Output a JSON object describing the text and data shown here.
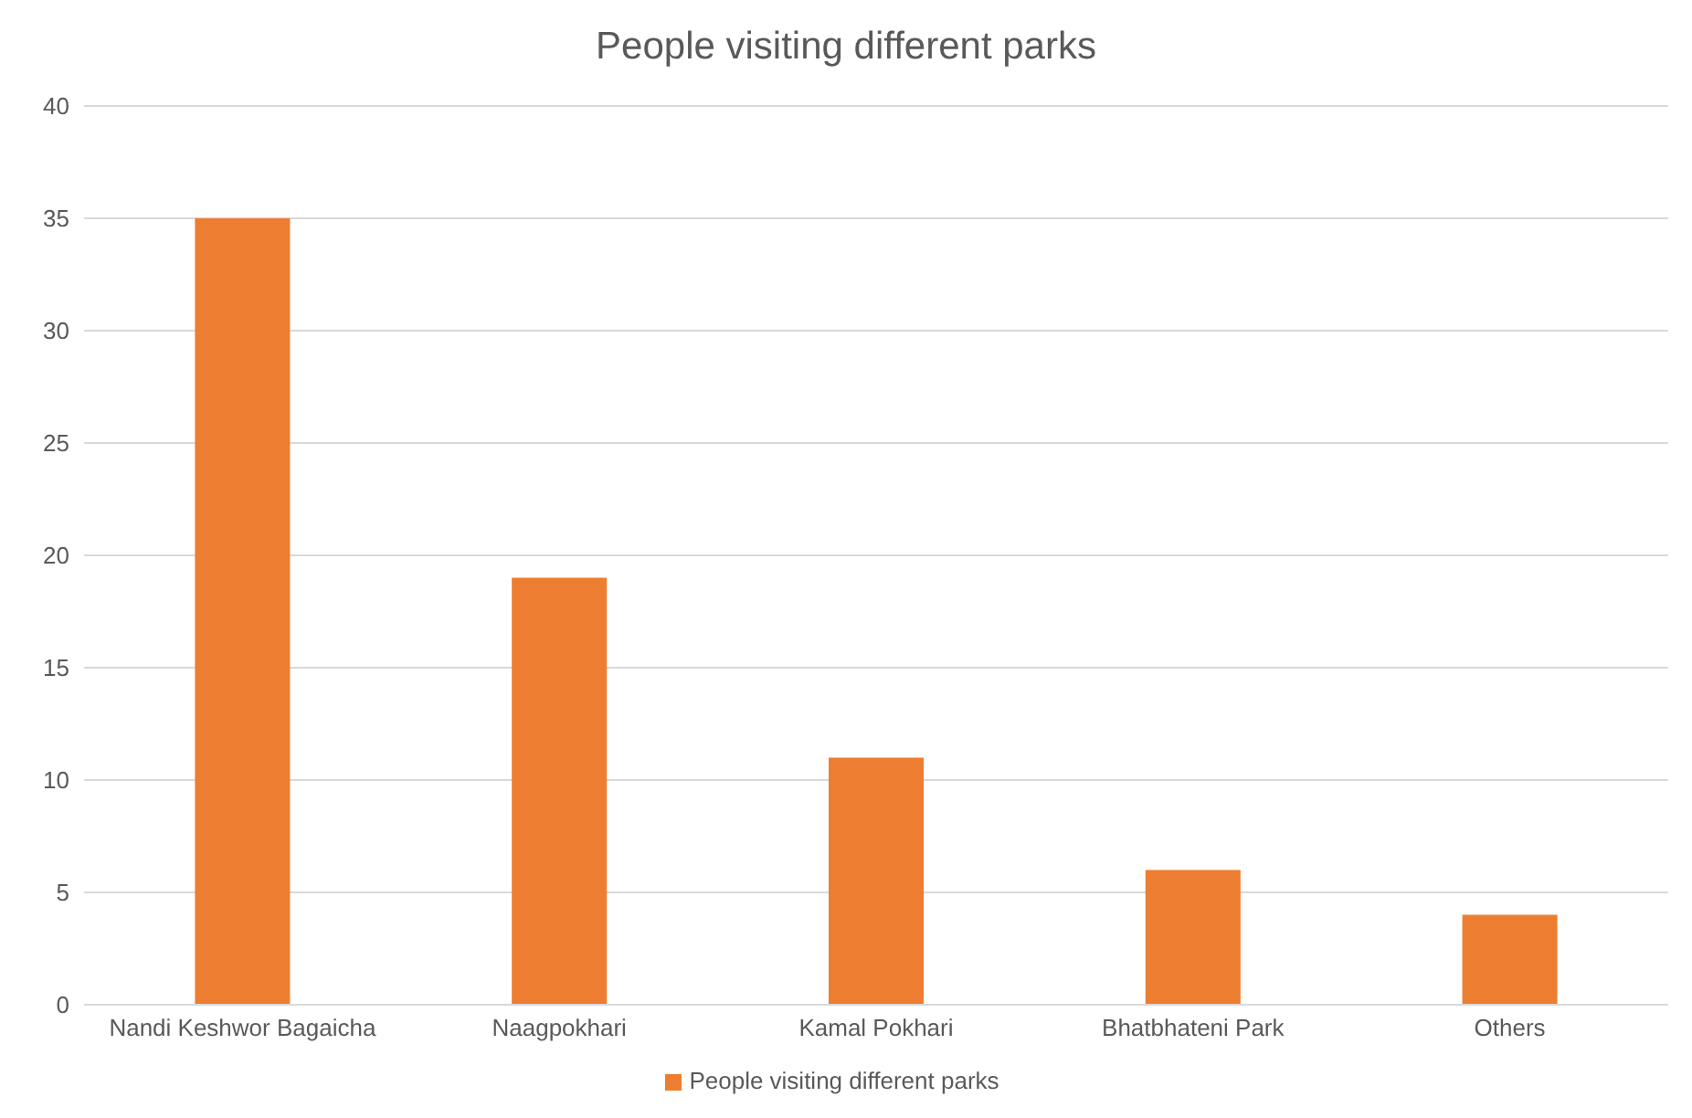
{
  "chart_data": {
    "type": "bar",
    "title": "People visiting different parks",
    "categories": [
      "Nandi Keshwor Bagaicha",
      "Naagpokhari",
      "Kamal Pokhari",
      "Bhatbhateni Park",
      "Others"
    ],
    "series": [
      {
        "name": "People visiting different parks",
        "color": "#ed7d31",
        "values": [
          35,
          19,
          11,
          6,
          4
        ]
      }
    ],
    "ylim": [
      0,
      40
    ],
    "yticks": [
      0,
      5,
      10,
      15,
      20,
      25,
      30,
      35,
      40
    ],
    "grid": "y",
    "legend": "bottom"
  }
}
